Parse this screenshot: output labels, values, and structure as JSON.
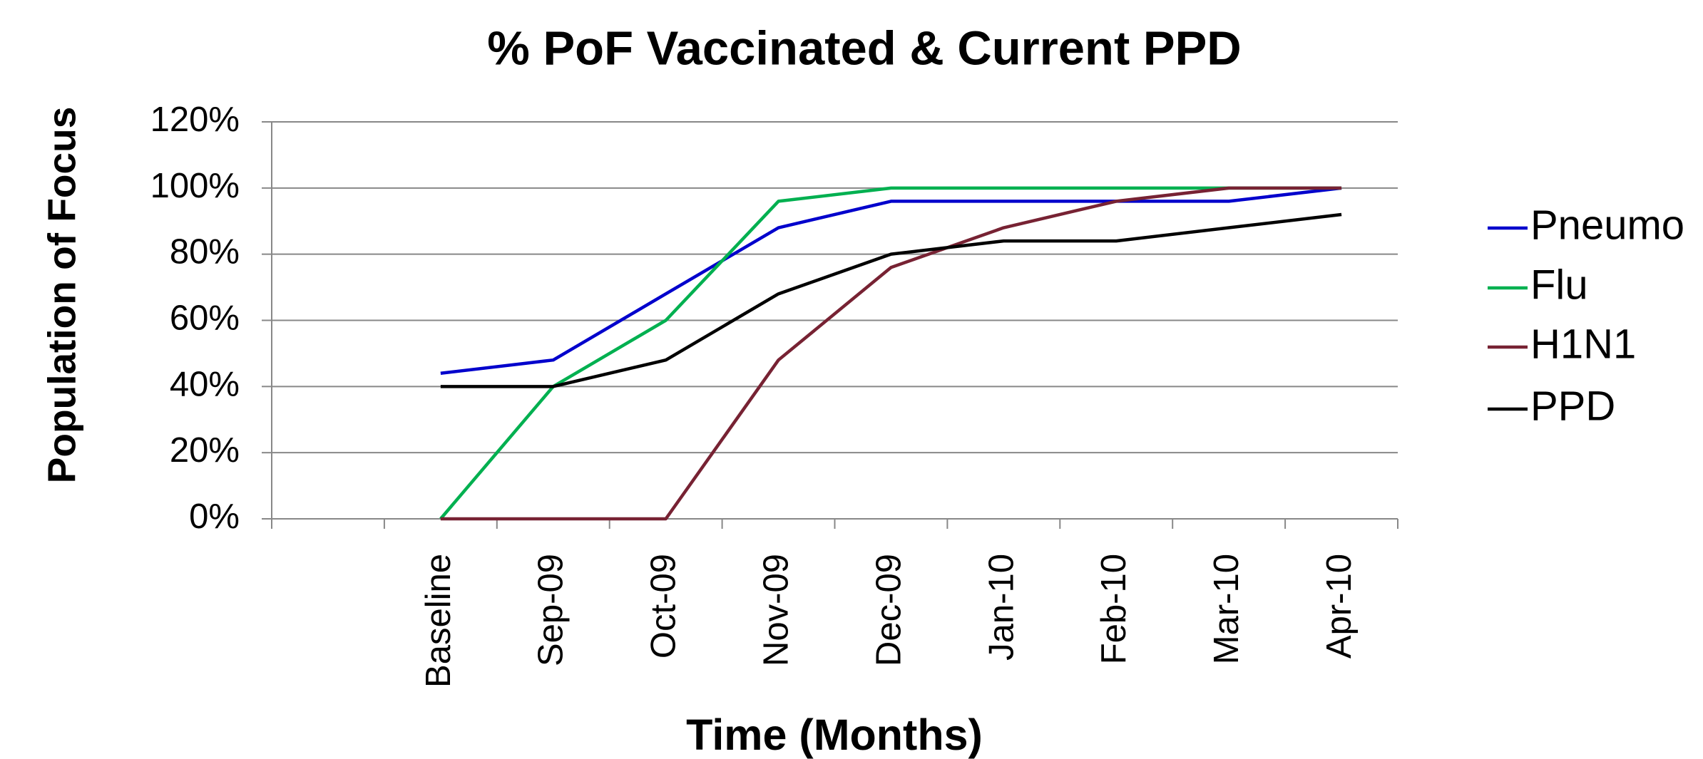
{
  "chart_data": {
    "type": "line",
    "title": "% PoF Vaccinated & Current PPD",
    "x_label": "Time (Months)",
    "y_label": "Population of Focus",
    "categories": [
      null,
      "Baseline",
      "Sep-09",
      "Oct-09",
      "Nov-09",
      "Dec-09",
      "Jan-10",
      "Feb-10",
      "Mar-10",
      "Apr-10"
    ],
    "series": [
      {
        "name": "Pneumo",
        "color": "#0000cc",
        "values": [
          null,
          44,
          48,
          68,
          88,
          96,
          96,
          96,
          96,
          100
        ]
      },
      {
        "name": "Flu",
        "color": "#00b050",
        "values": [
          null,
          0,
          40,
          60,
          96,
          100,
          100,
          100,
          100,
          100
        ]
      },
      {
        "name": "H1N1",
        "color": "#772233",
        "values": [
          null,
          0,
          0,
          0,
          48,
          76,
          88,
          96,
          100,
          100
        ]
      },
      {
        "name": "PPD",
        "color": "#000000",
        "values": [
          null,
          40,
          40,
          48,
          68,
          80,
          84,
          84,
          88,
          92
        ]
      }
    ],
    "ylim": [
      0,
      120
    ],
    "yticks": [
      {
        "value": 0,
        "label": "0%"
      },
      {
        "value": 20,
        "label": "20%"
      },
      {
        "value": 40,
        "label": "40%"
      },
      {
        "value": 60,
        "label": "60%"
      },
      {
        "value": 80,
        "label": "80%"
      },
      {
        "value": 100,
        "label": "100%"
      },
      {
        "value": 120,
        "label": "120%"
      }
    ],
    "grid": true,
    "legend": "right"
  }
}
